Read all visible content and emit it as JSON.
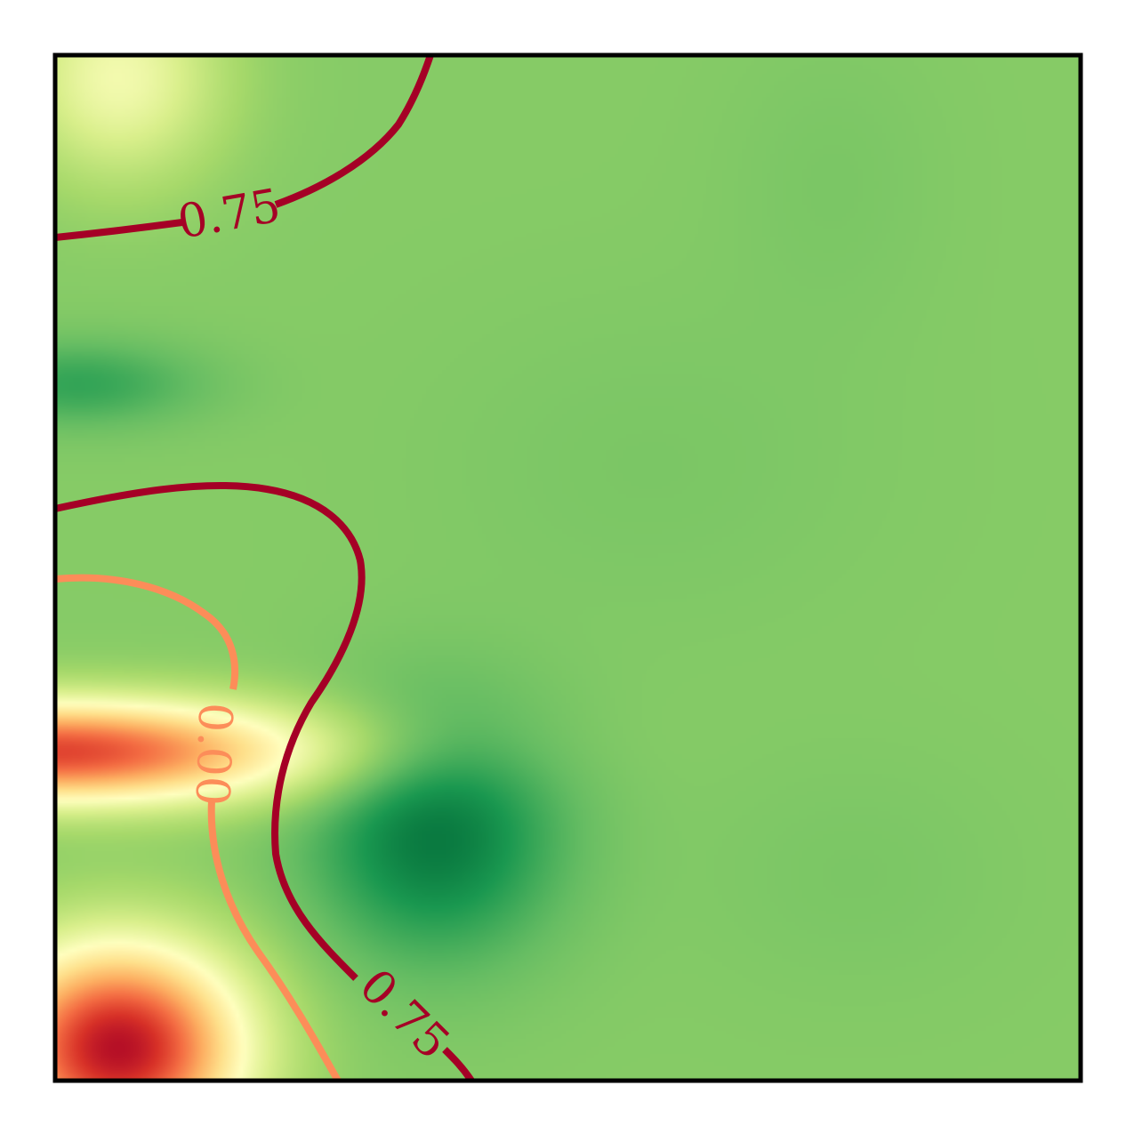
{
  "chart_data": {
    "type": "heatmap",
    "title": "",
    "xlabel": "",
    "ylabel": "",
    "colormap": "RdYlGn",
    "axes_ticks": false,
    "grid": false,
    "legend": "none",
    "contour_levels": [
      {
        "value": 0.0,
        "label": "0.00",
        "color": "#fc8d59"
      },
      {
        "value": 0.75,
        "label": "0.75",
        "color": "#a50026"
      }
    ],
    "field_extrema": [
      {
        "kind": "minimum",
        "x": 0.06,
        "y": 0.03,
        "value": -0.9
      },
      {
        "kind": "minimum",
        "x": 0.0,
        "y": 0.32,
        "value": -0.6
      },
      {
        "kind": "maximum",
        "x": 0.37,
        "y": 0.24,
        "value": 1.9
      },
      {
        "kind": "maximum",
        "x": 0.02,
        "y": 0.68,
        "value": 1.6
      },
      {
        "kind": "maximum",
        "x": 0.76,
        "y": 0.88,
        "value": 1.3
      },
      {
        "kind": "maximum",
        "x": 0.78,
        "y": 0.2,
        "value": 1.3
      },
      {
        "kind": "maximum",
        "x": 0.58,
        "y": 0.6,
        "value": 1.3
      },
      {
        "kind": "minimum",
        "x": 0.06,
        "y": 0.98,
        "value": 0.6
      }
    ]
  }
}
